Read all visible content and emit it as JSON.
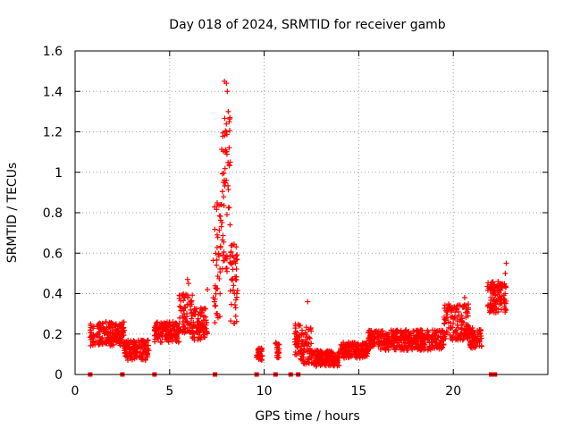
{
  "chart_data": {
    "type": "scatter",
    "title": "Day 018 of 2024, SRMTID for receiver gamb",
    "xlabel": "GPS time / hours",
    "ylabel": "SRMTID / TECUs",
    "xlim": [
      0,
      25
    ],
    "ylim": [
      0,
      1.6
    ],
    "xticks": [
      0,
      5,
      10,
      15,
      20
    ],
    "xtick_labels": [
      "0",
      "5",
      "10",
      "15",
      "20"
    ],
    "yticks": [
      0,
      0.2,
      0.4,
      0.6,
      0.8,
      1.0,
      1.2,
      1.4,
      1.6
    ],
    "ytick_labels": [
      "0",
      "0.2",
      "0.4",
      "0.6",
      "0.8",
      "1",
      "1.2",
      "1.4",
      "1.6"
    ],
    "grid": true,
    "marker": "plus",
    "color": "#ff0000",
    "segments": [
      {
        "x_start": 0.8,
        "x_end": 2.6,
        "base": 0.2,
        "amp": 0.06
      },
      {
        "x_start": 2.6,
        "x_end": 3.9,
        "base": 0.12,
        "amp": 0.05
      },
      {
        "x_start": 4.2,
        "x_end": 5.5,
        "base": 0.21,
        "amp": 0.05
      },
      {
        "x_start": 5.5,
        "x_end": 6.2,
        "base": 0.3,
        "amp": 0.1
      },
      {
        "x_start": 6.2,
        "x_end": 7.0,
        "base": 0.25,
        "amp": 0.08
      },
      {
        "x_start": 7.3,
        "x_end": 7.7,
        "base": 0.55,
        "amp": 0.3
      },
      {
        "x_start": 7.7,
        "x_end": 8.2,
        "base": 0.9,
        "amp": 0.4
      },
      {
        "x_start": 8.2,
        "x_end": 8.6,
        "base": 0.45,
        "amp": 0.2
      },
      {
        "x_start": 9.6,
        "x_end": 9.9,
        "base": 0.1,
        "amp": 0.03
      },
      {
        "x_start": 10.6,
        "x_end": 10.8,
        "base": 0.12,
        "amp": 0.04
      },
      {
        "x_start": 11.6,
        "x_end": 12.0,
        "base": 0.15,
        "amp": 0.1
      },
      {
        "x_start": 12.0,
        "x_end": 12.5,
        "base": 0.15,
        "amp": 0.1
      },
      {
        "x_start": 12.5,
        "x_end": 14.0,
        "base": 0.08,
        "amp": 0.04
      },
      {
        "x_start": 14.0,
        "x_end": 15.5,
        "base": 0.12,
        "amp": 0.04
      },
      {
        "x_start": 15.5,
        "x_end": 19.5,
        "base": 0.17,
        "amp": 0.05
      },
      {
        "x_start": 19.5,
        "x_end": 20.8,
        "base": 0.26,
        "amp": 0.09
      },
      {
        "x_start": 20.8,
        "x_end": 21.5,
        "base": 0.18,
        "amp": 0.05
      },
      {
        "x_start": 21.8,
        "x_end": 22.8,
        "base": 0.38,
        "amp": 0.08
      }
    ],
    "extra_points": [
      [
        7.9,
        1.45
      ],
      [
        8.0,
        1.44
      ],
      [
        8.05,
        1.4
      ],
      [
        8.1,
        1.3
      ],
      [
        8.15,
        1.25
      ],
      [
        8.0,
        1.2
      ],
      [
        7.95,
        1.1
      ],
      [
        8.2,
        1.05
      ],
      [
        7.85,
        0.95
      ],
      [
        22.8,
        0.55
      ],
      [
        22.75,
        0.5
      ],
      [
        12.3,
        0.36
      ],
      [
        5.95,
        0.47
      ],
      [
        6.0,
        0.45
      ],
      [
        7.0,
        0.42
      ],
      [
        20.6,
        0.38
      ]
    ],
    "zero_markers_x": [
      0.8,
      2.5,
      4.2,
      7.4,
      9.6,
      10.6,
      11.4,
      11.8,
      22.0,
      22.2
    ]
  }
}
